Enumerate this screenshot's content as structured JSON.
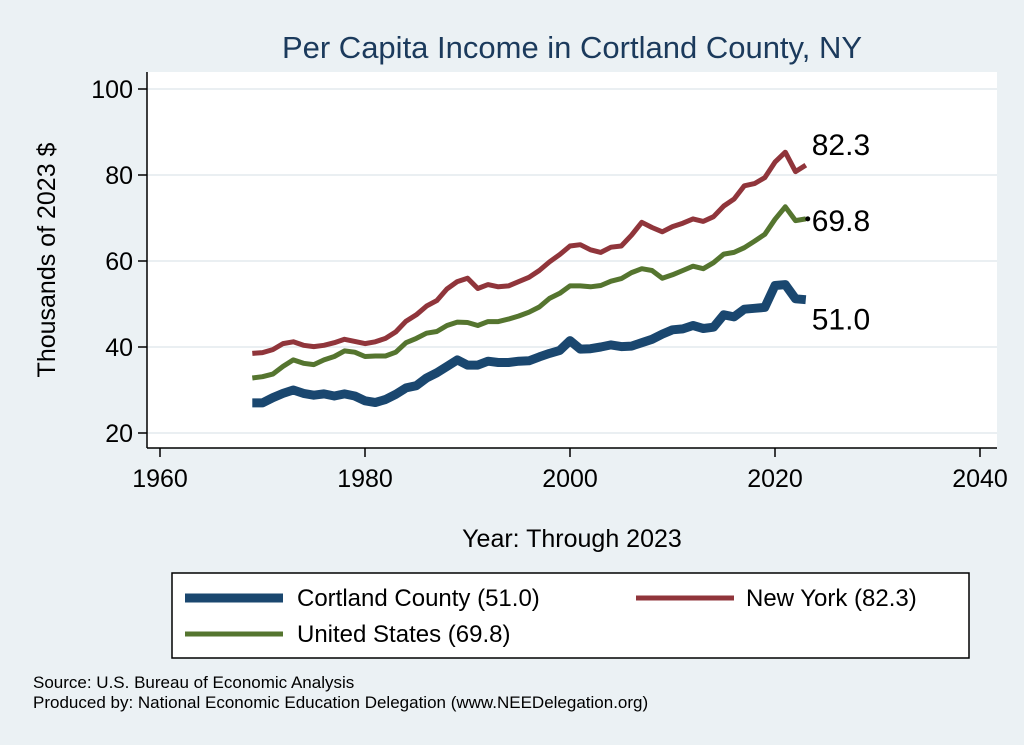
{
  "chart_data": {
    "type": "line",
    "title": "Per Capita Income in Cortland County, NY",
    "xlabel": "Year: Through 2023",
    "ylabel": "Thousands of 2023 $",
    "xlim": [
      1960,
      2040
    ],
    "ylim": [
      20,
      100
    ],
    "xticks": [
      1960,
      1980,
      2000,
      2020,
      2040
    ],
    "yticks": [
      20,
      40,
      60,
      80,
      100
    ],
    "grid": "horizontal",
    "legend_position": "bottom",
    "x": [
      1969,
      1970,
      1971,
      1972,
      1973,
      1974,
      1975,
      1976,
      1977,
      1978,
      1979,
      1980,
      1981,
      1982,
      1983,
      1984,
      1985,
      1986,
      1987,
      1988,
      1989,
      1990,
      1991,
      1992,
      1993,
      1994,
      1995,
      1996,
      1997,
      1998,
      1999,
      2000,
      2001,
      2002,
      2003,
      2004,
      2005,
      2006,
      2007,
      2008,
      2009,
      2010,
      2011,
      2012,
      2013,
      2014,
      2015,
      2016,
      2017,
      2018,
      2019,
      2020,
      2021,
      2022,
      2023
    ],
    "series": [
      {
        "name": "Cortland County (51.0)",
        "color": "#1a476f",
        "end_label": "51.0",
        "values": [
          27.0,
          27.0,
          28.2,
          29.2,
          30.0,
          29.2,
          28.8,
          29.1,
          28.6,
          29.1,
          28.6,
          27.5,
          27.1,
          27.8,
          29.0,
          30.5,
          31.0,
          32.8,
          34.0,
          35.5,
          37.0,
          35.8,
          35.8,
          36.7,
          36.4,
          36.4,
          36.7,
          36.8,
          37.7,
          38.5,
          39.2,
          41.5,
          39.5,
          39.6,
          40.0,
          40.5,
          40.1,
          40.2,
          41.0,
          41.8,
          43.0,
          44.0,
          44.2,
          45.0,
          44.3,
          44.6,
          47.5,
          47.0,
          48.8,
          49.0,
          49.2,
          54.3,
          54.5,
          51.2,
          51.0
        ]
      },
      {
        "name": "New York (82.3)",
        "color": "#90353b",
        "end_label": "82.3",
        "values": [
          38.5,
          38.7,
          39.4,
          40.8,
          41.2,
          40.4,
          40.1,
          40.4,
          41.0,
          41.8,
          41.3,
          40.8,
          41.2,
          42.0,
          43.5,
          46.0,
          47.5,
          49.5,
          50.8,
          53.5,
          55.2,
          56.0,
          53.6,
          54.5,
          54.0,
          54.2,
          55.2,
          56.2,
          57.8,
          59.8,
          61.5,
          63.5,
          63.8,
          62.6,
          62.0,
          63.2,
          63.5,
          66.0,
          69.0,
          67.8,
          66.8,
          68.0,
          68.8,
          69.8,
          69.2,
          70.3,
          72.8,
          74.4,
          77.5,
          78.0,
          79.4,
          83.0,
          85.3,
          80.8,
          82.3
        ]
      },
      {
        "name": "United States (69.8)",
        "color": "#55752f",
        "end_label": "69.8",
        "values": [
          32.8,
          33.1,
          33.7,
          35.5,
          37.0,
          36.2,
          35.9,
          37.0,
          37.8,
          39.1,
          38.8,
          37.8,
          37.9,
          37.9,
          38.8,
          41.0,
          42.0,
          43.2,
          43.6,
          45.0,
          45.8,
          45.7,
          45.0,
          45.9,
          45.9,
          46.5,
          47.2,
          48.1,
          49.3,
          51.3,
          52.5,
          54.2,
          54.2,
          54.0,
          54.3,
          55.3,
          55.9,
          57.3,
          58.2,
          57.8,
          56.0,
          56.8,
          57.8,
          58.8,
          58.2,
          59.6,
          61.6,
          62.0,
          63.1,
          64.6,
          66.2,
          69.7,
          72.6,
          69.4,
          69.8
        ]
      }
    ]
  },
  "legend": {
    "items": [
      {
        "label": "Cortland County (51.0)",
        "color": "#1a476f",
        "width": 9
      },
      {
        "label": "New York (82.3)",
        "color": "#90353b",
        "width": 5
      },
      {
        "label": "United States (69.8)",
        "color": "#55752f",
        "width": 5
      }
    ]
  },
  "footer": {
    "source": "Source: U.S. Bureau of Economic Analysis",
    "produced_by": "Produced by: National Economic Education Delegation (www.NEEDelegation.org)"
  }
}
